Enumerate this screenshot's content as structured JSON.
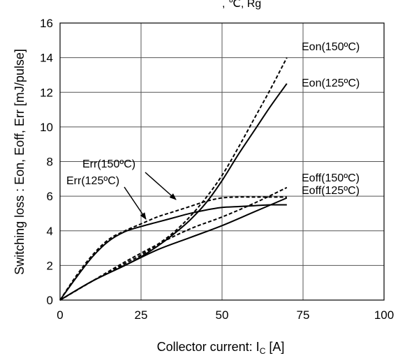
{
  "chart_data": {
    "type": "line",
    "title": ", ℃, Rg",
    "xlabel": {
      "main": "Collector current: I",
      "sub": "C",
      "unit": " [A]"
    },
    "ylabel": "Switching loss : Eon, Eoff, Err [mJ/pulse]",
    "xlim": [
      0,
      100
    ],
    "ylim": [
      0,
      16
    ],
    "xticks": [
      0,
      25,
      50,
      75,
      100
    ],
    "yticks": [
      0,
      2,
      4,
      6,
      8,
      10,
      12,
      14,
      16
    ],
    "grid": true,
    "legend": "none (inline labels)",
    "series": [
      {
        "name": "Eon(150°C)",
        "style": "dashed",
        "x": [
          0,
          10,
          20,
          25,
          30,
          35,
          40,
          45,
          50,
          55,
          60,
          65,
          70
        ],
        "y": [
          0,
          1.1,
          2.1,
          2.6,
          3.2,
          3.9,
          4.8,
          5.9,
          7.2,
          8.8,
          10.5,
          12.2,
          14.0
        ]
      },
      {
        "name": "Eon(125°C)",
        "style": "solid",
        "x": [
          0,
          10,
          20,
          25,
          30,
          35,
          40,
          45,
          50,
          55,
          60,
          65,
          70
        ],
        "y": [
          0,
          1.1,
          2.0,
          2.5,
          3.1,
          3.8,
          4.6,
          5.6,
          6.9,
          8.4,
          9.8,
          11.2,
          12.5
        ]
      },
      {
        "name": "Eoff(150°C)",
        "style": "dashed",
        "x": [
          0,
          10,
          20,
          30,
          40,
          50,
          60,
          70
        ],
        "y": [
          0,
          1.1,
          2.2,
          3.2,
          4.1,
          4.8,
          5.6,
          6.5
        ]
      },
      {
        "name": "Eoff(125°C)",
        "style": "solid",
        "x": [
          0,
          10,
          20,
          30,
          40,
          50,
          60,
          70
        ],
        "y": [
          0,
          1.1,
          2.0,
          2.9,
          3.6,
          4.3,
          5.1,
          5.9
        ]
      },
      {
        "name": "Err(150°C)",
        "style": "dashed",
        "x": [
          0,
          5,
          10,
          15,
          20,
          25,
          30,
          35,
          40,
          45,
          50,
          55,
          60,
          65,
          70
        ],
        "y": [
          0,
          1.4,
          2.6,
          3.5,
          4.0,
          4.4,
          4.8,
          5.1,
          5.4,
          5.7,
          5.9,
          5.95,
          5.95,
          5.95,
          5.95
        ]
      },
      {
        "name": "Err(125°C)",
        "style": "solid",
        "x": [
          0,
          5,
          10,
          15,
          20,
          25,
          30,
          35,
          40,
          45,
          50,
          55,
          60,
          65,
          70
        ],
        "y": [
          0,
          1.3,
          2.5,
          3.4,
          3.95,
          4.25,
          4.5,
          4.75,
          5.0,
          5.2,
          5.35,
          5.4,
          5.45,
          5.5,
          5.5
        ]
      }
    ],
    "annotations": {
      "eon150": "Eon(150ºC)",
      "eon125": "Eon(125ºC)",
      "eoff150": "Eoff(150ºC)",
      "eoff125": "Eoff(125ºC)",
      "err150": "Err(150ºC)",
      "err125": "Err(125ºC)"
    }
  }
}
